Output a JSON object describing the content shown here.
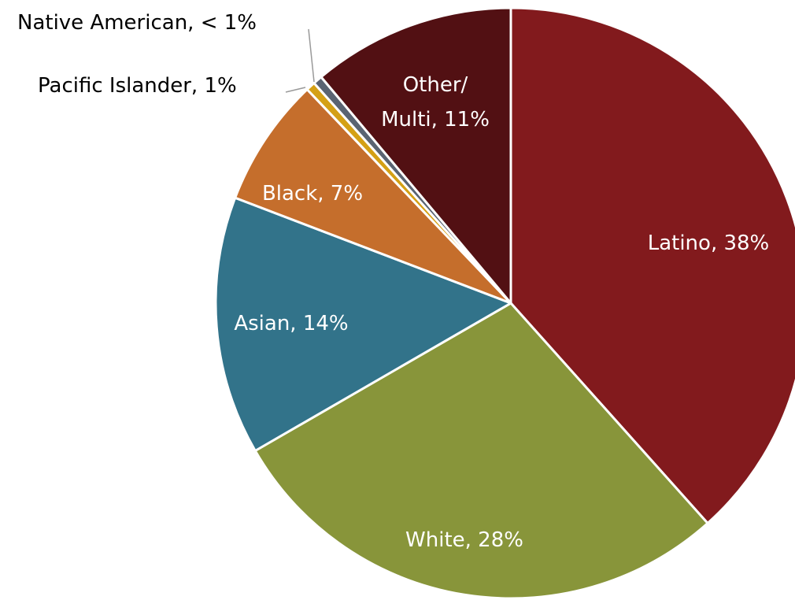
{
  "chart_data": {
    "type": "pie",
    "title": "",
    "start_angle_deg": 0,
    "direction": "clockwise",
    "slices": [
      {
        "label": "Latino, 38%",
        "category": "Latino",
        "value": 38,
        "color": "#821A1D",
        "label_inside": true
      },
      {
        "label": "White, 28%",
        "category": "White",
        "value": 28,
        "color": "#88953A",
        "label_inside": true
      },
      {
        "label": "Asian, 14%",
        "category": "Asian",
        "value": 14,
        "color": "#32738A",
        "label_inside": true
      },
      {
        "label": "Black, 7%",
        "category": "Black",
        "value": 7,
        "color": "#C56E2C",
        "label_inside": true
      },
      {
        "label": "Pacific Islander, 1%",
        "category": "Pacific Islander",
        "value": 0.5,
        "color": "#D4A015",
        "label_inside": false
      },
      {
        "label": "Native American, < 1%",
        "category": "Native American",
        "value": 0.5,
        "color": "#5A6472",
        "label_inside": false
      },
      {
        "label_lines": [
          "Other/",
          "Multi, 11%"
        ],
        "category": "Other/Multi",
        "value": 11,
        "color": "#521013",
        "label_inside": true
      }
    ]
  }
}
